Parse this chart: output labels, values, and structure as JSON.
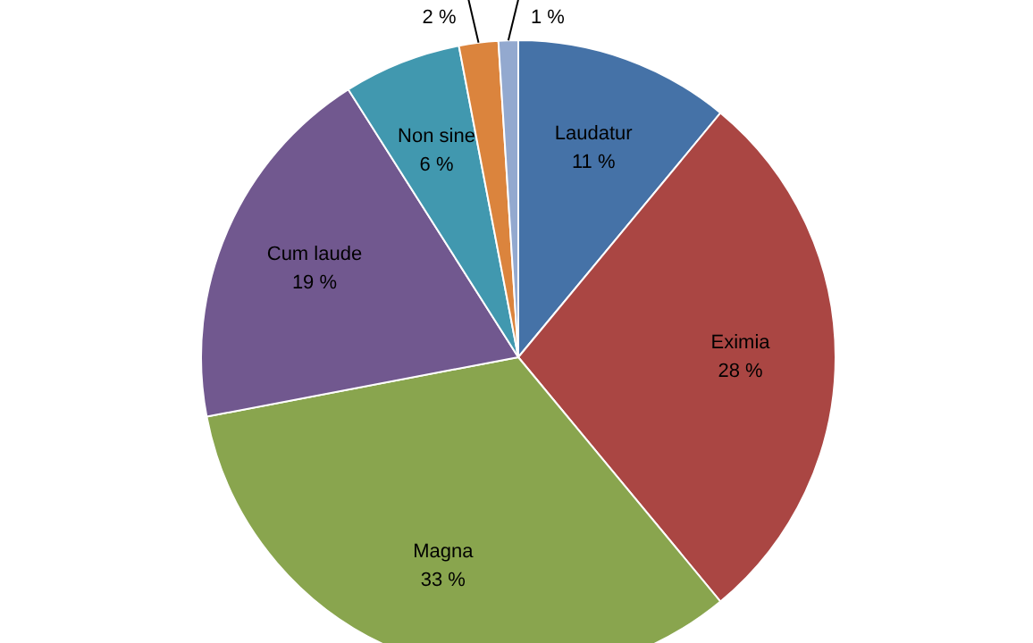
{
  "chart_data": {
    "type": "pie",
    "categories": [
      "Laudatur",
      "Eximia",
      "Magna",
      "Cum laude",
      "Non sine",
      null,
      null
    ],
    "values": [
      11,
      28,
      33,
      19,
      6,
      2,
      1
    ],
    "value_labels": [
      "11 %",
      "28 %",
      "33 %",
      "19 %",
      "6 %",
      "2 %",
      "1 %"
    ],
    "colors": [
      "#4572a7",
      "#aa4643",
      "#89a54e",
      "#71588f",
      "#4198af",
      "#db843d",
      "#93a9cf"
    ],
    "legend": false
  }
}
